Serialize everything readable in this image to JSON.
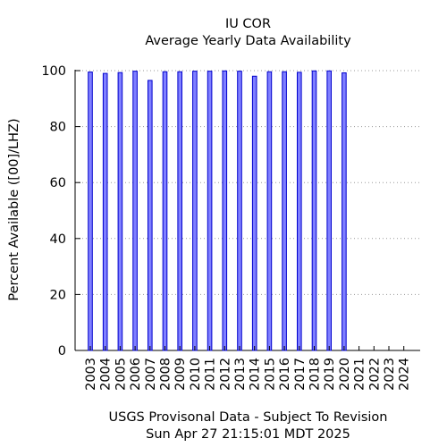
{
  "title": "IU COR",
  "subtitle": "Average Yearly Data Availability",
  "footer_line1": "USGS Provisonal Data - Subject To Revision",
  "footer_line2": "Sun Apr 27 21:15:01 MDT 2025",
  "colors": {
    "bar_fill": "#7f7fff",
    "bar_stroke": "#0000cc",
    "grid": "#999999"
  },
  "chart_data": {
    "type": "bar",
    "title": "IU COR",
    "subtitle": "Average Yearly Data Availability",
    "xlabel": "",
    "ylabel": "Percent Available ([00]/LHZ)",
    "categories": [
      "2003",
      "2004",
      "2005",
      "2006",
      "2007",
      "2008",
      "2009",
      "2010",
      "2011",
      "2012",
      "2013",
      "2014",
      "2015",
      "2016",
      "2017",
      "2018",
      "2019",
      "2020",
      "2021",
      "2022",
      "2023",
      "2024"
    ],
    "values": [
      99.5,
      99.0,
      99.3,
      99.8,
      96.5,
      99.6,
      99.6,
      99.8,
      99.8,
      99.9,
      99.8,
      98.0,
      99.6,
      99.6,
      99.4,
      99.9,
      99.9,
      99.2,
      null,
      null,
      null,
      null
    ],
    "yticks": [
      0,
      20,
      40,
      60,
      80,
      100
    ],
    "ylim": [
      0,
      100
    ],
    "grid": "horizontal-dotted",
    "legend": "none"
  }
}
